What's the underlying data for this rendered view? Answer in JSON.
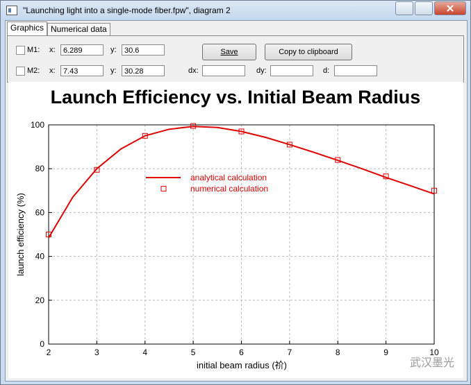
{
  "window": {
    "title": "\"Launching light into a single-mode fiber.fpw\", diagram 2"
  },
  "tabs": [
    "Graphics",
    "Numerical data"
  ],
  "controls": {
    "m1": {
      "label": "M1:",
      "x_label": "x:",
      "x": "6.289",
      "y_label": "y:",
      "y": "30.6"
    },
    "m2": {
      "label": "M2:",
      "x_label": "x:",
      "x": "7.43",
      "y_label": "y:",
      "y": "30.28"
    },
    "save": "Save",
    "copy": "Copy to clipboard",
    "dx_label": "dx:",
    "dy_label": "dy:",
    "d_label": "d:"
  },
  "watermark": "武汉墨光",
  "chart_data": {
    "type": "line",
    "title": "Launch Efficiency vs. Initial Beam Radius",
    "xlabel": "initial beam radius (祄)",
    "ylabel": "launch efficiency (%)",
    "xlim": [
      2,
      10
    ],
    "xticks": [
      2,
      3,
      4,
      5,
      6,
      7,
      8,
      9,
      10
    ],
    "ylim": [
      0,
      100
    ],
    "yticks": [
      0,
      20,
      40,
      60,
      80,
      100
    ],
    "grid": true,
    "legend": "upper center",
    "series": [
      {
        "name": "analytical calculation",
        "color": "#e00000",
        "marker": "none",
        "x": [
          2,
          2.5,
          3,
          3.5,
          4,
          4.5,
          5,
          5.5,
          6,
          6.5,
          7,
          7.5,
          8,
          8.5,
          9,
          9.5,
          10
        ],
        "values": [
          48.5,
          67,
          80,
          89,
          95,
          98,
          99.3,
          98.8,
          97,
          94.3,
          91,
          87.5,
          83.8,
          80,
          76,
          72.3,
          68.5
        ]
      },
      {
        "name": "numerical calculation",
        "color": "#e00000",
        "marker": "square",
        "x": [
          2,
          3,
          4,
          5,
          6,
          7,
          8,
          9,
          10
        ],
        "values": [
          50,
          79.5,
          95,
          99.5,
          97,
          91,
          84,
          76.5,
          70
        ]
      }
    ]
  }
}
